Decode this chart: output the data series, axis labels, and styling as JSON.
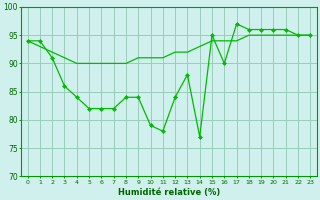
{
  "x": [
    0,
    1,
    2,
    3,
    4,
    5,
    6,
    7,
    8,
    9,
    10,
    11,
    12,
    13,
    14,
    15,
    16,
    17,
    18,
    19,
    20,
    21,
    22,
    23
  ],
  "y_main": [
    94,
    94,
    91,
    86,
    84,
    82,
    82,
    82,
    84,
    84,
    79,
    78,
    84,
    88,
    77,
    95,
    90,
    97,
    96,
    96,
    96,
    96,
    95,
    95
  ],
  "y_smooth": [
    94,
    93,
    92,
    91,
    90,
    90,
    90,
    90,
    90,
    91,
    91,
    91,
    92,
    92,
    93,
    94,
    94,
    94,
    95,
    95,
    95,
    95,
    95,
    95
  ],
  "line_color": "#00bb00",
  "bg_color": "#cff0ec",
  "grid_color": "#99ccbb",
  "xlabel": "Humidité relative (%)",
  "ylim": [
    70,
    100
  ],
  "xlim": [
    -0.5,
    23.5
  ],
  "yticks": [
    70,
    75,
    80,
    85,
    90,
    95,
    100
  ],
  "xticks": [
    0,
    1,
    2,
    3,
    4,
    5,
    6,
    7,
    8,
    9,
    10,
    11,
    12,
    13,
    14,
    15,
    16,
    17,
    18,
    19,
    20,
    21,
    22,
    23
  ]
}
